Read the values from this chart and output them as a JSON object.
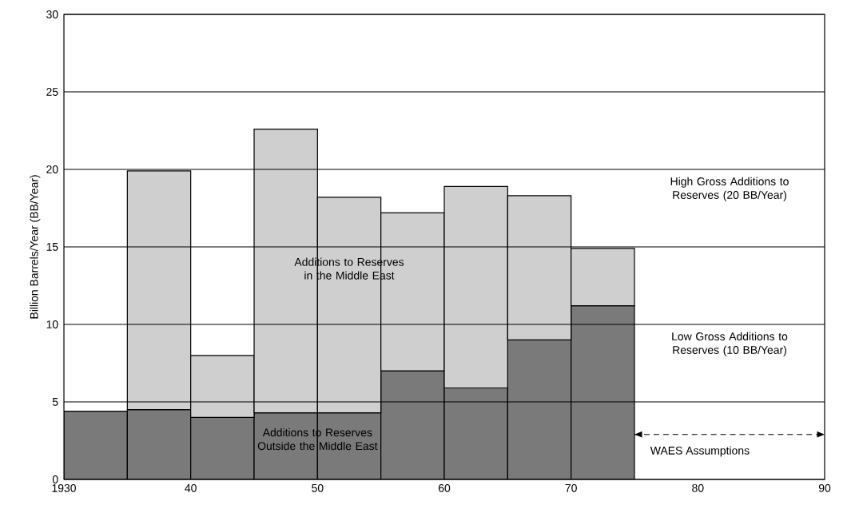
{
  "chart_data": {
    "type": "bar",
    "stacked": true,
    "x": [
      1932.5,
      1937.5,
      1942.5,
      1947.5,
      1952.5,
      1957.5,
      1962.5,
      1967.5,
      1972.5
    ],
    "series": [
      {
        "name": "Additions to Reserves Outside the Middle East",
        "color": "#7a7a7a",
        "values": [
          4.4,
          4.5,
          4.0,
          4.3,
          4.3,
          7.0,
          5.9,
          9.0,
          11.2
        ]
      },
      {
        "name": "Additions to Reserves in the Middle East",
        "color": "#cfcfcf",
        "values": [
          null,
          15.4,
          4.0,
          18.3,
          13.9,
          10.2,
          13.0,
          9.3,
          3.7
        ]
      }
    ],
    "ylabel": "Billion Barrels/Year (BB/Year)",
    "xlim": [
      1930,
      1990
    ],
    "ylim": [
      0,
      30
    ],
    "xticks": [
      1930,
      {
        "value": 1940,
        "label": "40"
      },
      {
        "value": 1950,
        "label": "50"
      },
      {
        "value": 1960,
        "label": "60"
      },
      {
        "value": 1970,
        "label": "70"
      },
      {
        "value": 1980,
        "label": "80"
      },
      {
        "value": 1990,
        "label": "90"
      }
    ],
    "yticks": [
      0,
      5,
      10,
      15,
      20,
      25,
      30
    ],
    "grid": "y",
    "annotations": [
      "High Gross Additions to Reserves (20 BB/Year)",
      "Low Gross Additions to Reserves (10 BB/Year)",
      "WAES Assumptions"
    ]
  }
}
